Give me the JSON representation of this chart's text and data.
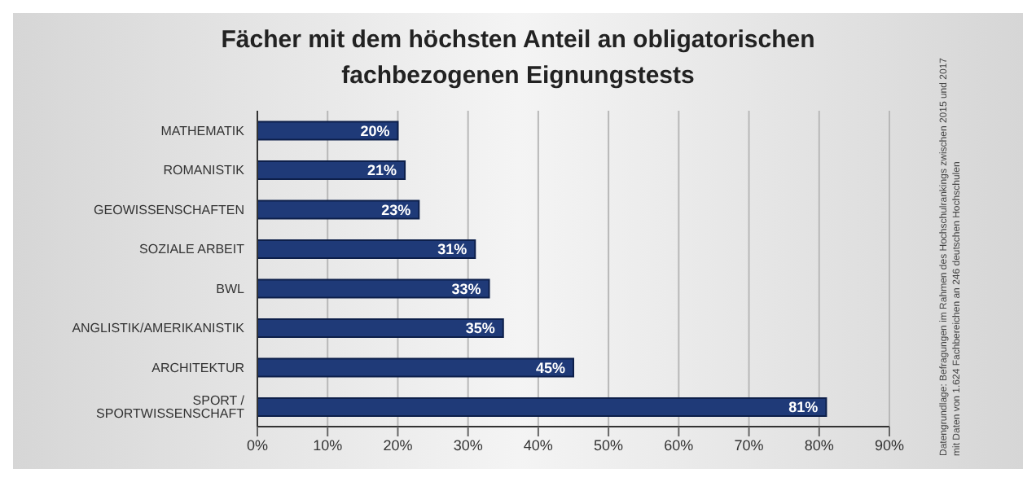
{
  "chart_data": {
    "type": "bar",
    "orientation": "horizontal",
    "title": "Fächer mit dem höchsten Anteil an obligatorischen fachbezogenen Eignungstests",
    "categories": [
      "MATHEMATIK",
      "ROMANISTIK",
      "GEOWISSENSCHAFTEN",
      "SOZIALE ARBEIT",
      "BWL",
      "ANGLISTIK/AMERIKANISTIK",
      "ARCHITEKTUR",
      "SPORT / SPORTWISSENSCHAFT"
    ],
    "values": [
      20,
      21,
      23,
      31,
      33,
      35,
      45,
      81
    ],
    "value_labels": [
      "20%",
      "21%",
      "23%",
      "31%",
      "33%",
      "35%",
      "45%",
      "81%"
    ],
    "color": "#1f3a78",
    "xlim": [
      0,
      90
    ],
    "xticks": [
      {
        "value": 0,
        "label": "0%"
      },
      {
        "value": 10,
        "label": "10%"
      },
      {
        "value": 20,
        "label": "20%"
      },
      {
        "value": 30,
        "label": "30%"
      },
      {
        "value": 40,
        "label": "40%"
      },
      {
        "value": 50,
        "label": "50%"
      },
      {
        "value": 60,
        "label": "60%"
      },
      {
        "value": 70,
        "label": "70%"
      },
      {
        "value": 80,
        "label": "80%"
      },
      {
        "value": 90,
        "label": "90%"
      }
    ],
    "grid": "x",
    "annotations": [
      "Datengrundlage: Befragungen im Rahmen des Hochschulrankings zwischen 2015 und 2017 mit Daten von 1.624 Fachbereichen an 246 deutschen Hochschulen"
    ]
  }
}
